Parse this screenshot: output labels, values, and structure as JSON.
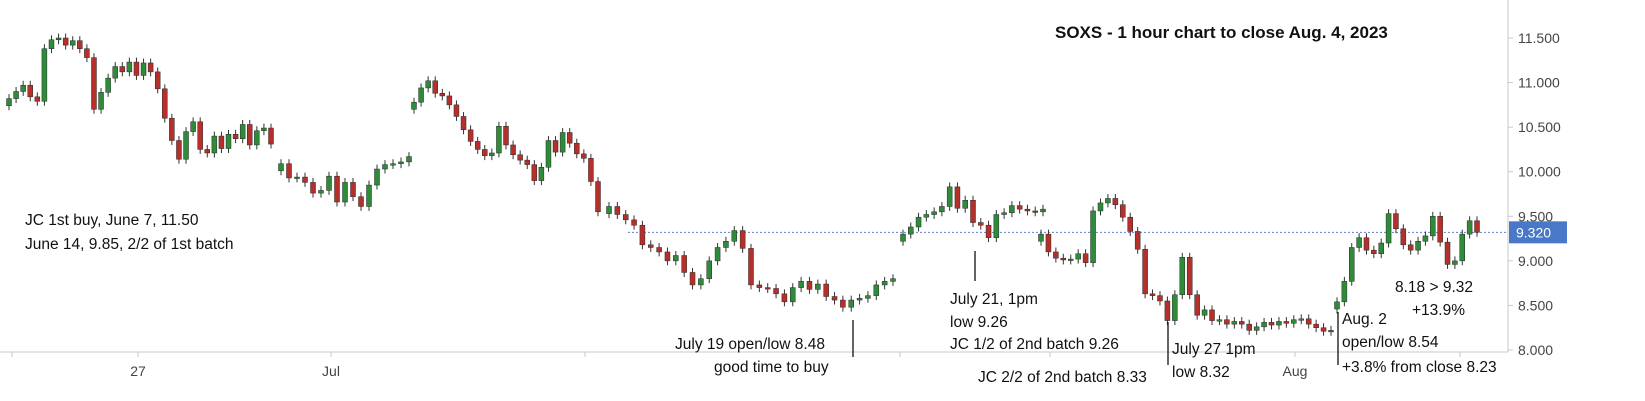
{
  "chart_data": {
    "type": "candlestick",
    "title": "SOXS - 1 hour chart to close Aug. 4, 2023",
    "ylim": [
      7.95,
      11.9
    ],
    "y_ticks": [
      "11.500",
      "11.000",
      "10.500",
      "10.000",
      "9.500",
      "9.000",
      "8.500",
      "8.000"
    ],
    "y_tick_values": [
      11.5,
      11.0,
      10.5,
      10.0,
      9.5,
      9.0,
      8.5,
      8.0
    ],
    "x_ticks": [
      "27",
      "Jul",
      "Aug"
    ],
    "current_price": 9.32,
    "current_price_label": "9.320",
    "grid": false,
    "colors": {
      "up": "#2e8b3a",
      "down": "#b5302a",
      "wick": "#333333",
      "price_line": "#5b7fc7",
      "price_label_bg": "#4a78c9"
    },
    "candles_segments": [
      [
        10.82,
        10.9,
        10.97,
        10.84,
        10.79,
        11.38,
        11.48,
        11.5,
        11.42,
        11.47,
        11.38,
        11.28,
        10.7,
        10.89,
        11.05,
        11.18,
        11.12,
        11.23,
        11.08,
        11.22,
        11.12,
        10.93,
        10.6,
        10.35,
        10.14,
        10.45,
        10.56,
        10.25,
        10.21,
        10.4,
        10.26,
        10.42,
        10.37,
        10.53,
        10.3,
        10.46,
        10.49,
        10.31
      ],
      [
        10.09,
        9.93,
        9.94,
        9.88,
        9.76,
        9.79,
        9.95,
        9.66,
        9.88,
        9.72,
        9.61,
        9.85,
        10.03,
        10.08,
        10.09,
        10.11,
        10.17
      ],
      [
        10.78,
        10.94,
        11.02,
        10.88,
        10.85,
        10.75,
        10.62,
        10.47,
        10.34,
        10.25,
        10.18,
        10.21,
        10.51,
        10.3,
        10.19,
        10.13,
        10.08,
        9.9,
        10.05,
        10.35,
        10.22,
        10.44,
        10.32,
        10.2,
        10.15,
        9.89,
        9.55
      ],
      [
        9.61,
        9.52,
        9.46,
        9.4,
        9.18,
        9.15,
        9.1,
        9.0,
        9.06,
        8.87,
        8.73,
        8.8,
        9.0,
        9.15,
        9.22,
        9.34,
        9.14,
        8.73,
        8.7,
        8.69,
        8.63,
        8.54,
        8.7,
        8.77,
        8.68,
        8.74,
        8.6,
        8.56,
        8.48,
        8.56,
        8.58,
        8.61,
        8.73,
        8.77,
        8.8
      ],
      [
        9.3,
        9.38,
        9.49,
        9.52,
        9.55,
        9.61,
        9.83,
        9.59,
        9.68,
        9.43,
        9.4,
        9.26,
        9.52,
        9.54,
        9.62,
        9.58,
        9.56,
        9.55,
        9.58
      ],
      [
        9.3,
        9.1,
        9.03,
        9.01,
        9.02,
        9.08,
        8.98,
        9.56,
        9.65,
        9.7,
        9.63,
        9.49,
        9.33,
        9.13,
        8.63,
        8.61,
        8.55,
        8.33,
        8.62,
        9.04,
        8.62,
        8.39,
        8.45,
        8.33,
        8.34,
        8.29,
        8.32,
        8.29,
        8.22,
        8.26,
        8.31,
        8.28,
        8.32,
        8.3,
        8.34,
        8.35,
        8.29,
        8.25,
        8.21,
        8.22
      ],
      [
        8.54,
        8.77,
        9.15,
        9.26,
        9.12,
        9.08,
        9.2,
        9.53,
        9.36,
        9.18,
        9.12,
        9.22,
        9.28,
        9.5,
        9.21,
        8.96,
        9.0,
        9.3,
        9.45,
        9.32
      ]
    ],
    "annotations": [
      "JC 1st buy, June 7, 11.50",
      "June 14, 9.85, 2/2 of 1st batch",
      "July 19 open/low 8.48",
      "good time to buy",
      "July 21, 1pm",
      "low 9.26",
      "JC 1/2 of 2nd batch 9.26",
      "JC 2/2 of 2nd batch 8.33",
      "July 27 1pm",
      "low 8.32",
      "Aug. 2",
      "open/low 8.54",
      "+3.8% from close 8.23",
      "8.18 > 9.32",
      "+13.9%"
    ]
  }
}
